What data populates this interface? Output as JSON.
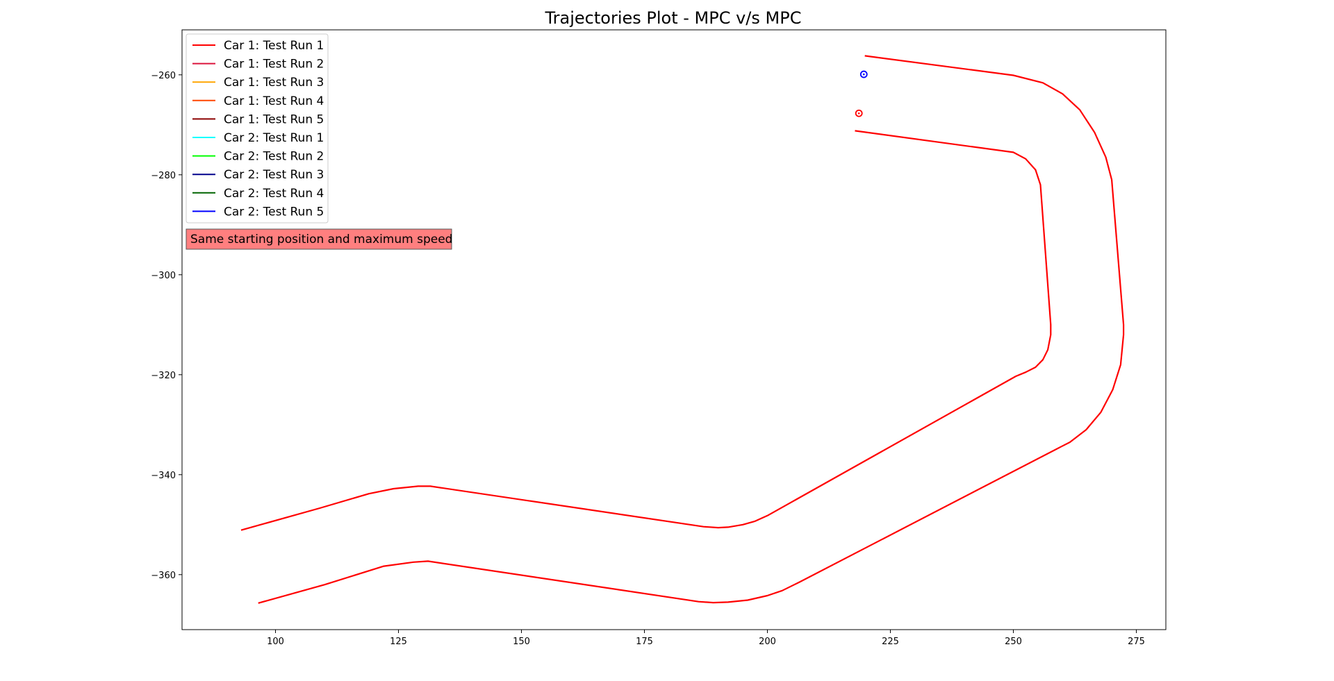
{
  "chart_data": {
    "type": "line",
    "title": "Trajectories Plot - MPC v/s MPC",
    "xlabel": "",
    "ylabel": "",
    "xlim": [
      81,
      281
    ],
    "ylim": [
      -371,
      -251
    ],
    "xticks": [
      100,
      125,
      150,
      175,
      200,
      225,
      250,
      275
    ],
    "yticks": [
      -260,
      -280,
      -300,
      -320,
      -340,
      -360
    ],
    "grid": false,
    "legend_position": "top-left",
    "legend": [
      {
        "label": "Car 1: Test Run 1",
        "color": "#ff0000"
      },
      {
        "label": "Car 1: Test Run 2",
        "color": "#dc143c"
      },
      {
        "label": "Car 1: Test Run 3",
        "color": "#ffa500"
      },
      {
        "label": "Car 1: Test Run 4",
        "color": "#ff4500"
      },
      {
        "label": "Car 1: Test Run 5",
        "color": "#8b0000"
      },
      {
        "label": "Car 2: Test Run 1",
        "color": "#00ffff"
      },
      {
        "label": "Car 2: Test Run 2",
        "color": "#00ff00"
      },
      {
        "label": "Car 2: Test Run 3",
        "color": "#00008b"
      },
      {
        "label": "Car 2: Test Run 4",
        "color": "#006400"
      },
      {
        "label": "Car 2: Test Run 5",
        "color": "#0000ff"
      }
    ],
    "annotation": {
      "text": "Same starting position and maximum speed",
      "background": "#ff7f7f"
    },
    "track_color": "#ff0000",
    "track_boundaries": [
      {
        "name": "outer",
        "points": [
          [
            219.8,
            -256.2
          ],
          [
            250,
            -260.1
          ],
          [
            256,
            -261.6
          ],
          [
            260,
            -263.8
          ],
          [
            263.5,
            -267
          ],
          [
            266.5,
            -271.5
          ],
          [
            268.8,
            -276.5
          ],
          [
            270,
            -281
          ],
          [
            272.4,
            -310
          ],
          [
            272.4,
            -312
          ],
          [
            271.8,
            -318
          ],
          [
            270.2,
            -323
          ],
          [
            267.8,
            -327.5
          ],
          [
            264.8,
            -331
          ],
          [
            261.5,
            -333.5
          ],
          [
            259.5,
            -334.5
          ],
          [
            206.5,
            -361.5
          ],
          [
            203,
            -363.2
          ],
          [
            200,
            -364.2
          ],
          [
            196,
            -365.1
          ],
          [
            192,
            -365.5
          ],
          [
            189,
            -365.6
          ],
          [
            186,
            -365.4
          ],
          [
            131,
            -357.3
          ],
          [
            128,
            -357.5
          ],
          [
            122,
            -358.3
          ],
          [
            110,
            -362
          ],
          [
            96.5,
            -365.7
          ]
        ]
      },
      {
        "name": "inner",
        "points": [
          [
            217.8,
            -271.2
          ],
          [
            250,
            -275.5
          ],
          [
            252.5,
            -276.8
          ],
          [
            254.5,
            -279
          ],
          [
            255.5,
            -282
          ],
          [
            257.6,
            -310
          ],
          [
            257.6,
            -312
          ],
          [
            257,
            -315
          ],
          [
            256,
            -317
          ],
          [
            254.5,
            -318.5
          ],
          [
            252.5,
            -319.5
          ],
          [
            250.5,
            -320.3
          ],
          [
            200,
            -348.2
          ],
          [
            197.5,
            -349.3
          ],
          [
            195,
            -350
          ],
          [
            192,
            -350.5
          ],
          [
            190,
            -350.6
          ],
          [
            187,
            -350.4
          ],
          [
            131.5,
            -342.3
          ],
          [
            129,
            -342.3
          ],
          [
            124,
            -342.8
          ],
          [
            119,
            -343.8
          ],
          [
            109,
            -346.7
          ],
          [
            93,
            -351.1
          ]
        ]
      }
    ],
    "start_markers": [
      {
        "label": "Car 1",
        "x": 218.6,
        "y": -267.7,
        "color": "#ff0000"
      },
      {
        "label": "Car 2",
        "x": 219.6,
        "y": -259.9,
        "color": "#0000ff"
      }
    ]
  }
}
